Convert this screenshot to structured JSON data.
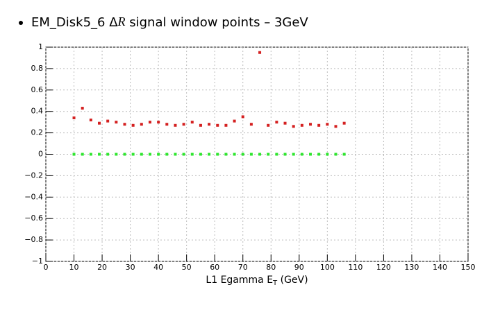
{
  "chart_data": {
    "type": "scatter",
    "title": [
      "EM_Disk5_6 Δ",
      "R",
      " signal window points – 3GeV"
    ],
    "xlabel": [
      "L1 Egamma E",
      "T",
      " (GeV)"
    ],
    "x": [
      10,
      13,
      16,
      19,
      22,
      25,
      28,
      31,
      34,
      37,
      40,
      43,
      46,
      49,
      52,
      55,
      58,
      61,
      64,
      67,
      70,
      73,
      76,
      79,
      82,
      85,
      88,
      91,
      94,
      97,
      100,
      103,
      106
    ],
    "series": [
      {
        "color": "#d42020",
        "values": [
          0.34,
          0.43,
          0.32,
          0.29,
          0.31,
          0.3,
          0.28,
          0.27,
          0.28,
          0.3,
          0.3,
          0.28,
          0.27,
          0.28,
          0.3,
          0.27,
          0.28,
          0.27,
          0.27,
          0.31,
          0.35,
          0.28,
          0.95,
          0.27,
          0.3,
          0.29,
          0.26,
          0.27,
          0.28,
          0.27,
          0.28,
          0.26,
          0.29
        ]
      },
      {
        "color": "#2ee62e",
        "values": [
          0,
          0,
          0,
          0,
          0,
          0,
          0,
          0,
          0,
          0,
          0,
          0,
          0,
          0,
          0,
          0,
          0,
          0,
          0,
          0,
          0,
          0,
          0,
          0,
          0,
          0,
          0,
          0,
          0,
          0,
          0,
          0,
          0
        ]
      }
    ],
    "xlim": [
      0,
      150
    ],
    "ylim": [
      -1,
      1
    ],
    "xticks": [
      0,
      10,
      20,
      30,
      40,
      50,
      60,
      70,
      80,
      90,
      100,
      110,
      120,
      130,
      140,
      150
    ],
    "yticks": [
      {
        "value": -1,
        "label": "−1"
      },
      {
        "value": -0.8,
        "label": "−0.8"
      },
      {
        "value": -0.6,
        "label": "−0.6"
      },
      {
        "value": -0.4,
        "label": "−0.4"
      },
      {
        "value": -0.2,
        "label": "−0.2"
      },
      0,
      0.2,
      0.4,
      0.6,
      0.8,
      1
    ],
    "grid": true
  }
}
